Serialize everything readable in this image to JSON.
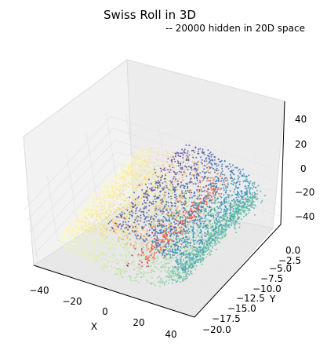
{
  "chart_data": {
    "type": "scatter",
    "projection": "3d",
    "title": "Swiss Roll in 3D",
    "subtitle": "-- 20000 hidden in 20D space",
    "xlabel": "X",
    "ylabel": "Y",
    "zlabel": "",
    "xlim": [
      -50,
      50
    ],
    "ylim": [
      -21,
      1
    ],
    "zlim": [
      -55,
      55
    ],
    "x_ticks": [
      "−40",
      "−20",
      "0",
      "20",
      "40"
    ],
    "y_ticks": [
      "0.0",
      "−2.5",
      "−5.0",
      "−7.5",
      "−10.0",
      "−12.5",
      "−15.0",
      "−17.5",
      "−20.0"
    ],
    "z_ticks": [
      "40",
      "20",
      "0",
      "−20",
      "−40"
    ],
    "n_points": 20000,
    "colormap": "Spectral",
    "color_by": "roll position t (center red, outer turns blue)",
    "roll": {
      "t_range": [
        4.71,
        14.14
      ],
      "radius_scale": 3.3,
      "height_range": [
        -20,
        0
      ]
    },
    "grid": true,
    "colors": {
      "pane": "#f2f2f2",
      "pane_edge": "#dcdcdc",
      "grid": "#e6e6e6",
      "spectral": [
        "#9e0142",
        "#d53e4f",
        "#f46d43",
        "#fdae61",
        "#fee08b",
        "#ffffbf",
        "#e6f598",
        "#abdda4",
        "#66c2a5",
        "#3288bd",
        "#5e4fa2"
      ]
    }
  }
}
